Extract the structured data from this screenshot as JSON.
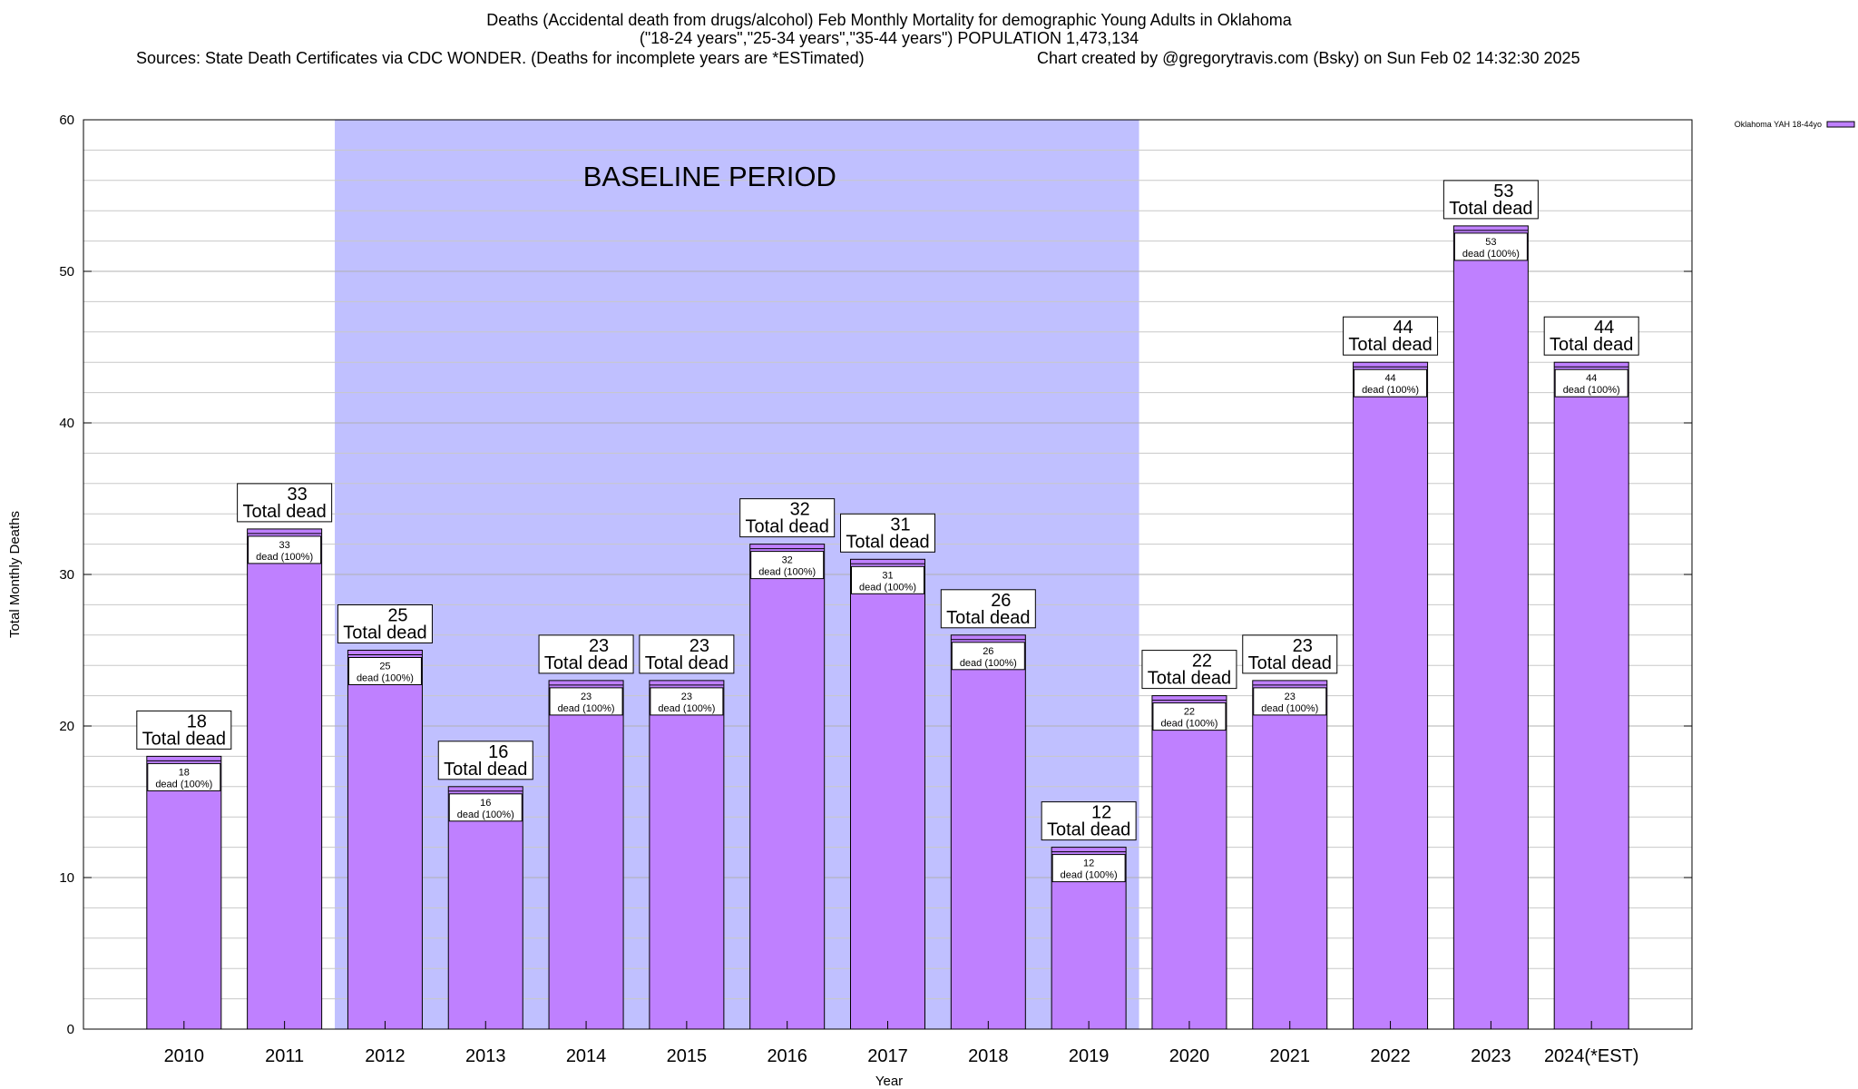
{
  "header": {
    "title_line1": "Deaths (Accidental death from drugs/alcohol) Feb Monthly Mortality for demographic Young Adults in Oklahoma",
    "title_line2": "(\"18-24 years\",\"25-34 years\",\"35-44 years\") POPULATION 1,473,134",
    "sources": "Sources: State Death Certificates via CDC WONDER. (Deaths for incomplete years are *ESTimated)",
    "credit": "Chart created by @gregorytravis.com (Bsky) on Sun Feb 02 14:32:30 2025"
  },
  "chart_data": {
    "type": "bar",
    "title": "Deaths (Accidental death from drugs/alcohol) Feb Monthly Mortality for demographic Young Adults in Oklahoma",
    "xlabel": "Year",
    "ylabel": "Total Monthly Deaths",
    "ylim": [
      0,
      60
    ],
    "ytick_step": 10,
    "minor_grid_step": 2,
    "categories": [
      "2010",
      "2011",
      "2012",
      "2013",
      "2014",
      "2015",
      "2016",
      "2017",
      "2018",
      "2019",
      "2020",
      "2021",
      "2022",
      "2023",
      "2024(*EST)"
    ],
    "series": [
      {
        "name": "Oklahoma YAH 18-44yo",
        "color": "#bf80ff",
        "values": [
          18,
          33,
          25,
          16,
          23,
          23,
          32,
          31,
          26,
          12,
          22,
          23,
          44,
          53,
          44
        ]
      }
    ],
    "total_label_suffix": "Total dead",
    "inner_label_suffix": "dead (100%)",
    "baseline": {
      "label": "BASELINE PERIOD",
      "start_category": "2012",
      "end_category": "2019",
      "color": "#c0c0ff"
    },
    "legend_position": "top-right"
  },
  "colors": {
    "bar_fill": "#bf80ff",
    "baseline_fill": "#c0c0ff",
    "grid": "#c8c8c8"
  }
}
